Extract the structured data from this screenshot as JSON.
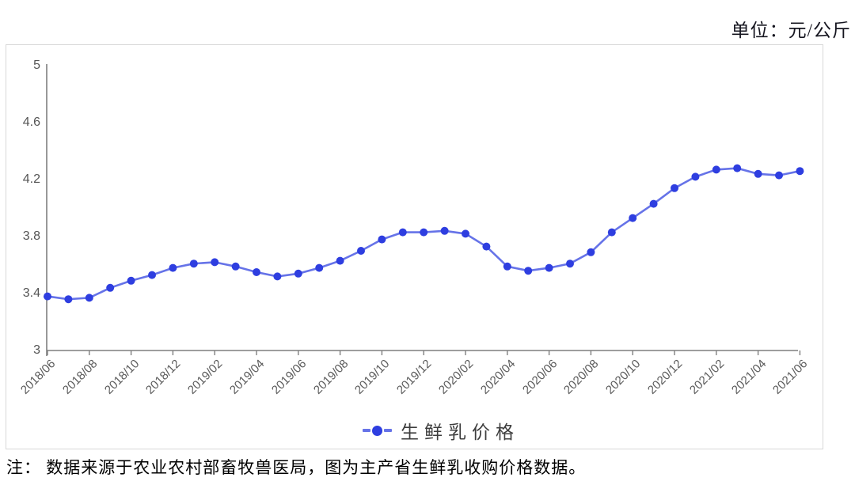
{
  "unit_label": "单位：元/公斤",
  "note": "注： 数据来源于农业农村部畜牧兽医局，图为主产省生鲜乳收购价格数据。",
  "chart_data": {
    "type": "line",
    "title": "",
    "legend": "生鲜乳价格",
    "unit": "元/公斤",
    "categories": [
      "2018/06",
      "2018/07",
      "2018/08",
      "2018/09",
      "2018/10",
      "2018/11",
      "2018/12",
      "2019/01",
      "2019/02",
      "2019/03",
      "2019/04",
      "2019/05",
      "2019/06",
      "2019/07",
      "2019/08",
      "2019/09",
      "2019/10",
      "2019/11",
      "2019/12",
      "2020/01",
      "2020/02",
      "2020/03",
      "2020/04",
      "2020/05",
      "2020/06",
      "2020/07",
      "2020/08",
      "2020/09",
      "2020/10",
      "2020/11",
      "2020/12",
      "2021/01",
      "2021/02",
      "2021/03",
      "2021/04",
      "2021/05",
      "2021/06"
    ],
    "values": [
      3.38,
      3.36,
      3.37,
      3.44,
      3.49,
      3.53,
      3.58,
      3.61,
      3.62,
      3.59,
      3.55,
      3.52,
      3.54,
      3.58,
      3.63,
      3.7,
      3.78,
      3.83,
      3.83,
      3.84,
      3.82,
      3.73,
      3.59,
      3.56,
      3.58,
      3.61,
      3.69,
      3.83,
      3.93,
      4.03,
      4.14,
      4.22,
      4.27,
      4.28,
      4.24,
      4.23,
      4.26
    ],
    "x_tick_labels": [
      "2018/06",
      "2018/08",
      "2018/10",
      "2018/12",
      "2019/02",
      "2019/04",
      "2019/06",
      "2019/08",
      "2019/10",
      "2019/12",
      "2020/02",
      "2020/04",
      "2020/06",
      "2020/08",
      "2020/10",
      "2020/12",
      "2021/02",
      "2021/04",
      "2021/06"
    ],
    "y_ticks": [
      "3",
      "3.4",
      "3.8",
      "4.2",
      "4.6",
      "5"
    ],
    "ylim": [
      3,
      5
    ],
    "grid": false,
    "legend_position": "bottom-center",
    "colors": {
      "line": "#6673e8",
      "marker": "#2e3ee0",
      "axis": "#7f7f7f",
      "tick_text": "#595959"
    }
  }
}
